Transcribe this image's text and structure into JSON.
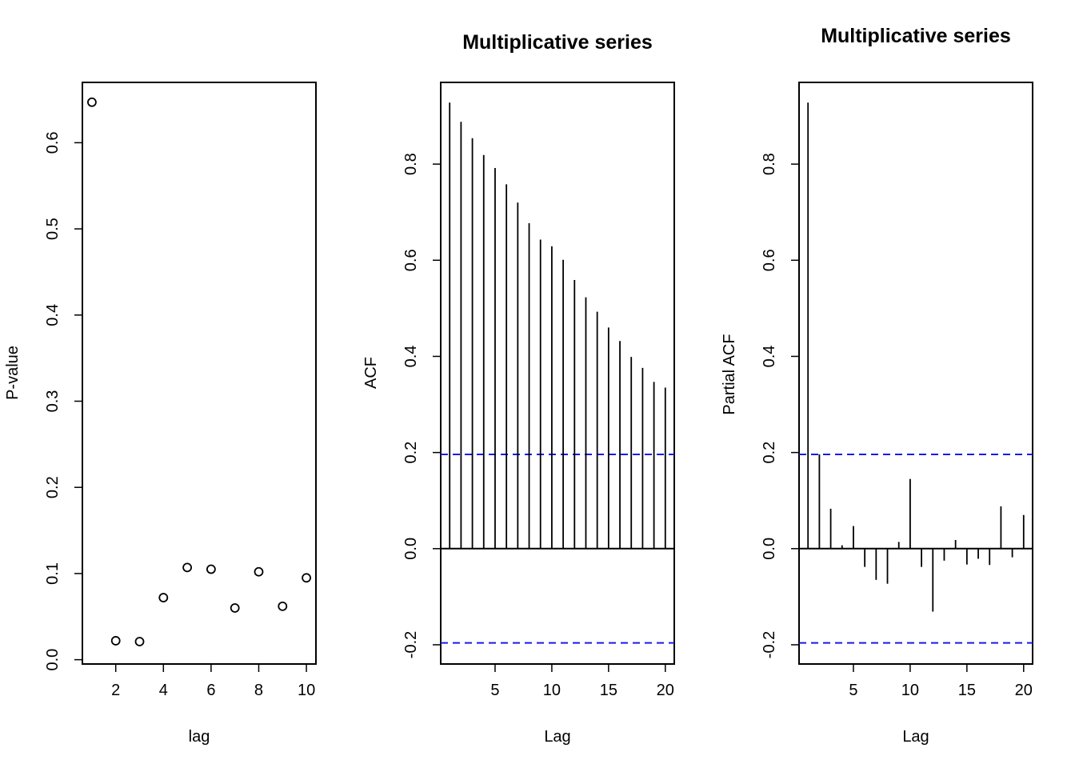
{
  "chart_data": [
    {
      "type": "scatter",
      "title": "",
      "xlabel": "lag",
      "ylabel": "P-value",
      "xlim": [
        0.6,
        10.4
      ],
      "ylim": [
        -0.005,
        0.67
      ],
      "xticks": [
        2,
        4,
        6,
        8,
        10
      ],
      "yticks": [
        0.0,
        0.1,
        0.2,
        0.3,
        0.4,
        0.5,
        0.6
      ],
      "ytick_labels": [
        "0.0",
        "0.1",
        "0.2",
        "0.3",
        "0.4",
        "0.5",
        "0.6"
      ],
      "x": [
        1,
        2,
        3,
        4,
        5,
        6,
        7,
        8,
        9,
        10
      ],
      "y": [
        0.647,
        0.022,
        0.021,
        0.072,
        0.107,
        0.105,
        0.06,
        0.102,
        0.062,
        0.095
      ],
      "grid": false
    },
    {
      "type": "bar",
      "title": "Multiplicative series",
      "xlabel": "Lag",
      "ylabel": "ACF",
      "xlim": [
        0.21,
        20.79
      ],
      "ylim": [
        -0.24,
        0.97
      ],
      "xticks": [
        5,
        10,
        15,
        20
      ],
      "yticks": [
        -0.2,
        0.0,
        0.2,
        0.4,
        0.6,
        0.8
      ],
      "ytick_labels": [
        "-0.2",
        "0.0",
        "0.2",
        "0.4",
        "0.6",
        "0.8"
      ],
      "x": [
        1,
        2,
        3,
        4,
        5,
        6,
        7,
        8,
        9,
        10,
        11,
        12,
        13,
        14,
        15,
        16,
        17,
        18,
        19,
        20
      ],
      "values": [
        0.928,
        0.888,
        0.854,
        0.819,
        0.792,
        0.758,
        0.72,
        0.677,
        0.643,
        0.629,
        0.601,
        0.559,
        0.523,
        0.493,
        0.46,
        0.432,
        0.399,
        0.376,
        0.347,
        0.335
      ],
      "confidence_bounds": [
        0.196,
        -0.196
      ],
      "confidence_color": "#1a1aee",
      "grid": false
    },
    {
      "type": "bar",
      "title": "Multiplicative series",
      "xlabel": "Lag",
      "ylabel": "Partial ACF",
      "xlim": [
        0.21,
        20.79
      ],
      "ylim": [
        -0.24,
        0.97
      ],
      "xticks": [
        5,
        10,
        15,
        20
      ],
      "yticks": [
        -0.2,
        0.0,
        0.2,
        0.4,
        0.6,
        0.8
      ],
      "ytick_labels": [
        "-0.2",
        "0.0",
        "0.2",
        "0.4",
        "0.6",
        "0.8"
      ],
      "x": [
        1,
        2,
        3,
        4,
        5,
        6,
        7,
        8,
        9,
        10,
        11,
        12,
        13,
        14,
        15,
        16,
        17,
        18,
        19,
        20
      ],
      "values": [
        0.928,
        0.196,
        0.083,
        0.007,
        0.047,
        -0.038,
        -0.065,
        -0.073,
        0.014,
        0.145,
        -0.038,
        -0.131,
        -0.025,
        0.018,
        -0.033,
        -0.021,
        -0.034,
        0.088,
        -0.018,
        0.07
      ],
      "confidence_bounds": [
        0.196,
        -0.196
      ],
      "confidence_color": "#1a1aee",
      "grid": false
    }
  ]
}
